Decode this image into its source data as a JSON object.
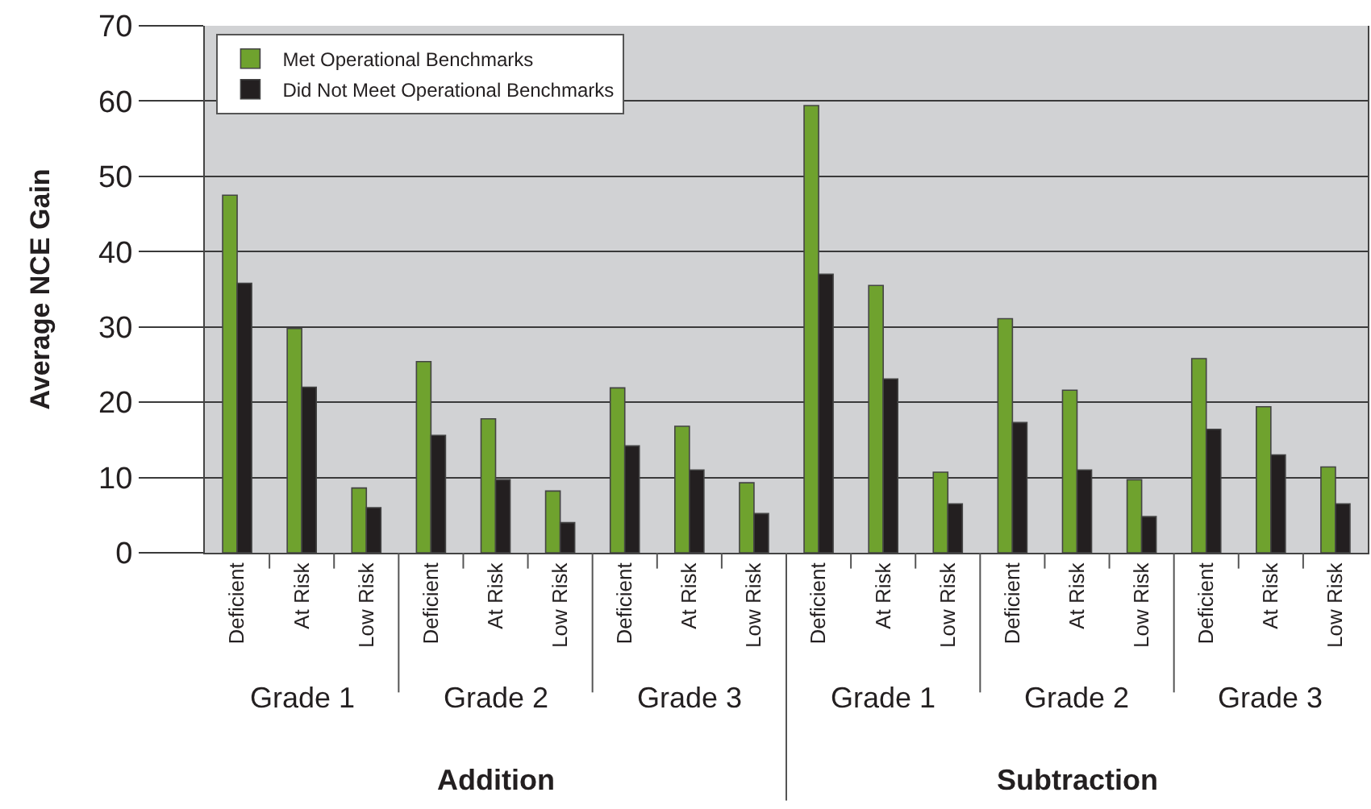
{
  "chart_data": {
    "type": "bar",
    "ylabel": "Average NCE Gain",
    "categories": [
      "Deficient",
      "At Risk",
      "Low Risk",
      "Deficient",
      "At Risk",
      "Low Risk",
      "Deficient",
      "At Risk",
      "Low Risk",
      "Deficient",
      "At Risk",
      "Low Risk",
      "Deficient",
      "At Risk",
      "Low Risk",
      "Deficient",
      "At Risk",
      "Low Risk"
    ],
    "series": [
      {
        "name": "Met Operational Benchmarks",
        "color": "#6fa22e",
        "values": [
          47.5,
          29.8,
          8.6,
          25.4,
          17.8,
          8.2,
          21.9,
          16.8,
          9.3,
          59.4,
          35.5,
          10.7,
          31.1,
          21.6,
          9.7,
          25.8,
          19.4,
          11.4
        ]
      },
      {
        "name": "Did Not Meet Operational Benchmarks",
        "color": "#231f20",
        "values": [
          35.8,
          22,
          6,
          15.6,
          9.7,
          4,
          14.2,
          11,
          5.2,
          37,
          23.1,
          6.5,
          17.3,
          11,
          4.8,
          16.4,
          13,
          6.5
        ]
      }
    ],
    "annotations": [
      "Grade 1",
      "Grade 2",
      "Grade 3",
      "Grade 1",
      "Grade 2",
      "Grade 3",
      "Addition",
      "Subtraction"
    ],
    "ylim": [
      0,
      70
    ],
    "yticks": [
      0,
      10,
      20,
      30,
      40,
      50,
      60,
      70
    ],
    "grid": "y",
    "legend": "top left"
  }
}
